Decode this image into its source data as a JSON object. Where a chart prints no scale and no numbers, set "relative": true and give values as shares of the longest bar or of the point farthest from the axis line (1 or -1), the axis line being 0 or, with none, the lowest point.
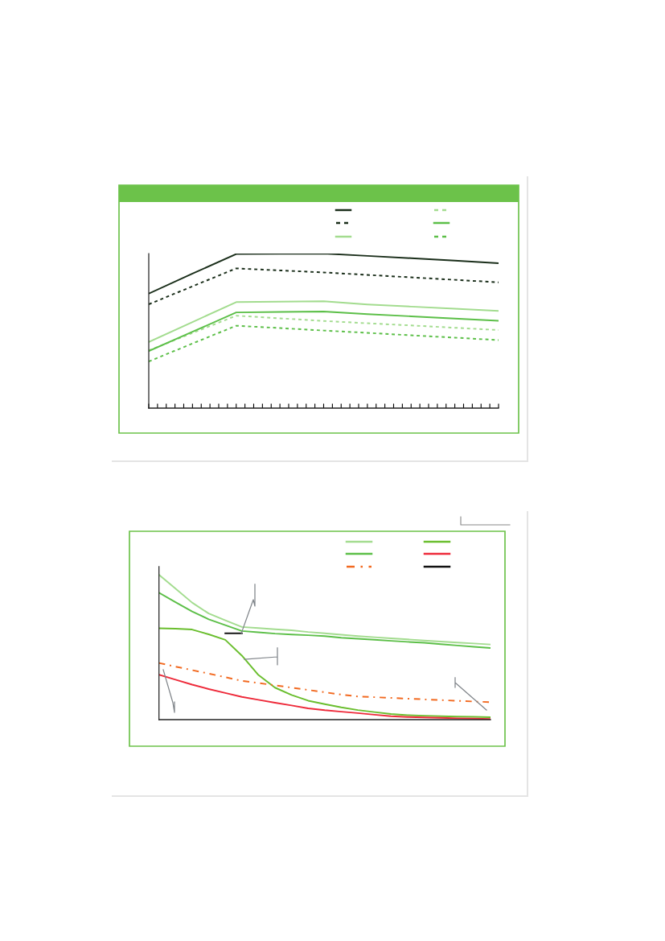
{
  "chart_data": [
    {
      "type": "line",
      "relative": true,
      "categories": [
        null,
        null,
        null,
        null,
        null,
        null,
        null,
        null,
        null
      ],
      "series": [
        {
          "color": "#1a2e1a",
          "line_style": "solid",
          "values": [
            0.741,
            0.87,
            0.997,
            0.999,
            1.0,
            0.985,
            0.97,
            0.954,
            0.938
          ]
        },
        {
          "color": "#1a2e1a",
          "line_style": "dotted",
          "values": [
            0.672,
            0.788,
            0.904,
            0.891,
            0.878,
            0.862,
            0.846,
            0.83,
            0.814
          ]
        },
        {
          "color": "#a3dc8f",
          "line_style": "solid",
          "values": [
            0.428,
            0.557,
            0.686,
            0.689,
            0.691,
            0.671,
            0.657,
            0.643,
            0.629
          ]
        },
        {
          "color": "#a3dc8f",
          "line_style": "dotted",
          "values": [
            0.373,
            0.486,
            0.598,
            0.581,
            0.564,
            0.549,
            0.535,
            0.52,
            0.505
          ]
        },
        {
          "color": "#5cbf48",
          "line_style": "solid",
          "values": [
            0.369,
            0.494,
            0.619,
            0.622,
            0.625,
            0.608,
            0.594,
            0.579,
            0.565
          ]
        },
        {
          "color": "#5cbf48",
          "line_style": "dotted",
          "values": [
            0.302,
            0.418,
            0.533,
            0.518,
            0.502,
            0.487,
            0.471,
            0.456,
            0.44
          ]
        }
      ]
    },
    {
      "type": "line",
      "relative": true,
      "categories": [
        null,
        null,
        null,
        null,
        null,
        null,
        null,
        null,
        null,
        null,
        null,
        null,
        null,
        null,
        null,
        null,
        null,
        null,
        null,
        null,
        null
      ],
      "series": [
        {
          "color": "#a3dc8f",
          "line_style": "solid",
          "values": [
            1.0,
            0.904,
            0.808,
            0.733,
            0.686,
            0.64,
            0.632,
            0.624,
            0.617,
            0.605,
            0.596,
            0.586,
            0.577,
            0.569,
            0.561,
            0.554,
            0.546,
            0.539,
            0.532,
            0.526,
            0.519
          ]
        },
        {
          "color": "#5cbf48",
          "line_style": "solid",
          "values": [
            0.876,
            0.811,
            0.747,
            0.693,
            0.652,
            0.612,
            0.603,
            0.594,
            0.588,
            0.583,
            0.577,
            0.566,
            0.559,
            0.552,
            0.544,
            0.537,
            0.531,
            0.521,
            0.512,
            0.503,
            0.495
          ]
        },
        {
          "color": "#6abe2e",
          "line_style": "solid",
          "values": [
            0.631,
            0.628,
            0.622,
            0.589,
            0.551,
            0.442,
            0.308,
            0.221,
            0.17,
            0.131,
            0.107,
            0.085,
            0.066,
            0.052,
            0.039,
            0.031,
            0.027,
            0.024,
            0.021,
            0.019,
            0.017
          ]
        },
        {
          "color": "#f26a21",
          "line_style": "dashdot",
          "values": [
            0.391,
            0.366,
            0.342,
            0.318,
            0.293,
            0.268,
            0.253,
            0.237,
            0.221,
            0.205,
            0.189,
            0.173,
            0.16,
            0.155,
            0.15,
            0.145,
            0.14,
            0.135,
            0.13,
            0.125,
            0.121
          ]
        },
        {
          "color": "#ee2a3a",
          "line_style": "solid",
          "values": [
            0.31,
            0.276,
            0.242,
            0.211,
            0.184,
            0.157,
            0.137,
            0.117,
            0.098,
            0.078,
            0.065,
            0.055,
            0.045,
            0.034,
            0.024,
            0.018,
            0.015,
            0.012,
            0.009,
            0.007,
            0.004
          ]
        },
        {
          "color": "#111111",
          "line_style": "solid",
          "values": [
            null,
            null,
            null,
            null,
            0.596,
            0.596,
            null,
            null,
            null,
            null,
            null,
            null,
            null,
            null,
            null,
            null,
            null,
            null,
            null,
            null,
            null
          ]
        }
      ]
    }
  ]
}
